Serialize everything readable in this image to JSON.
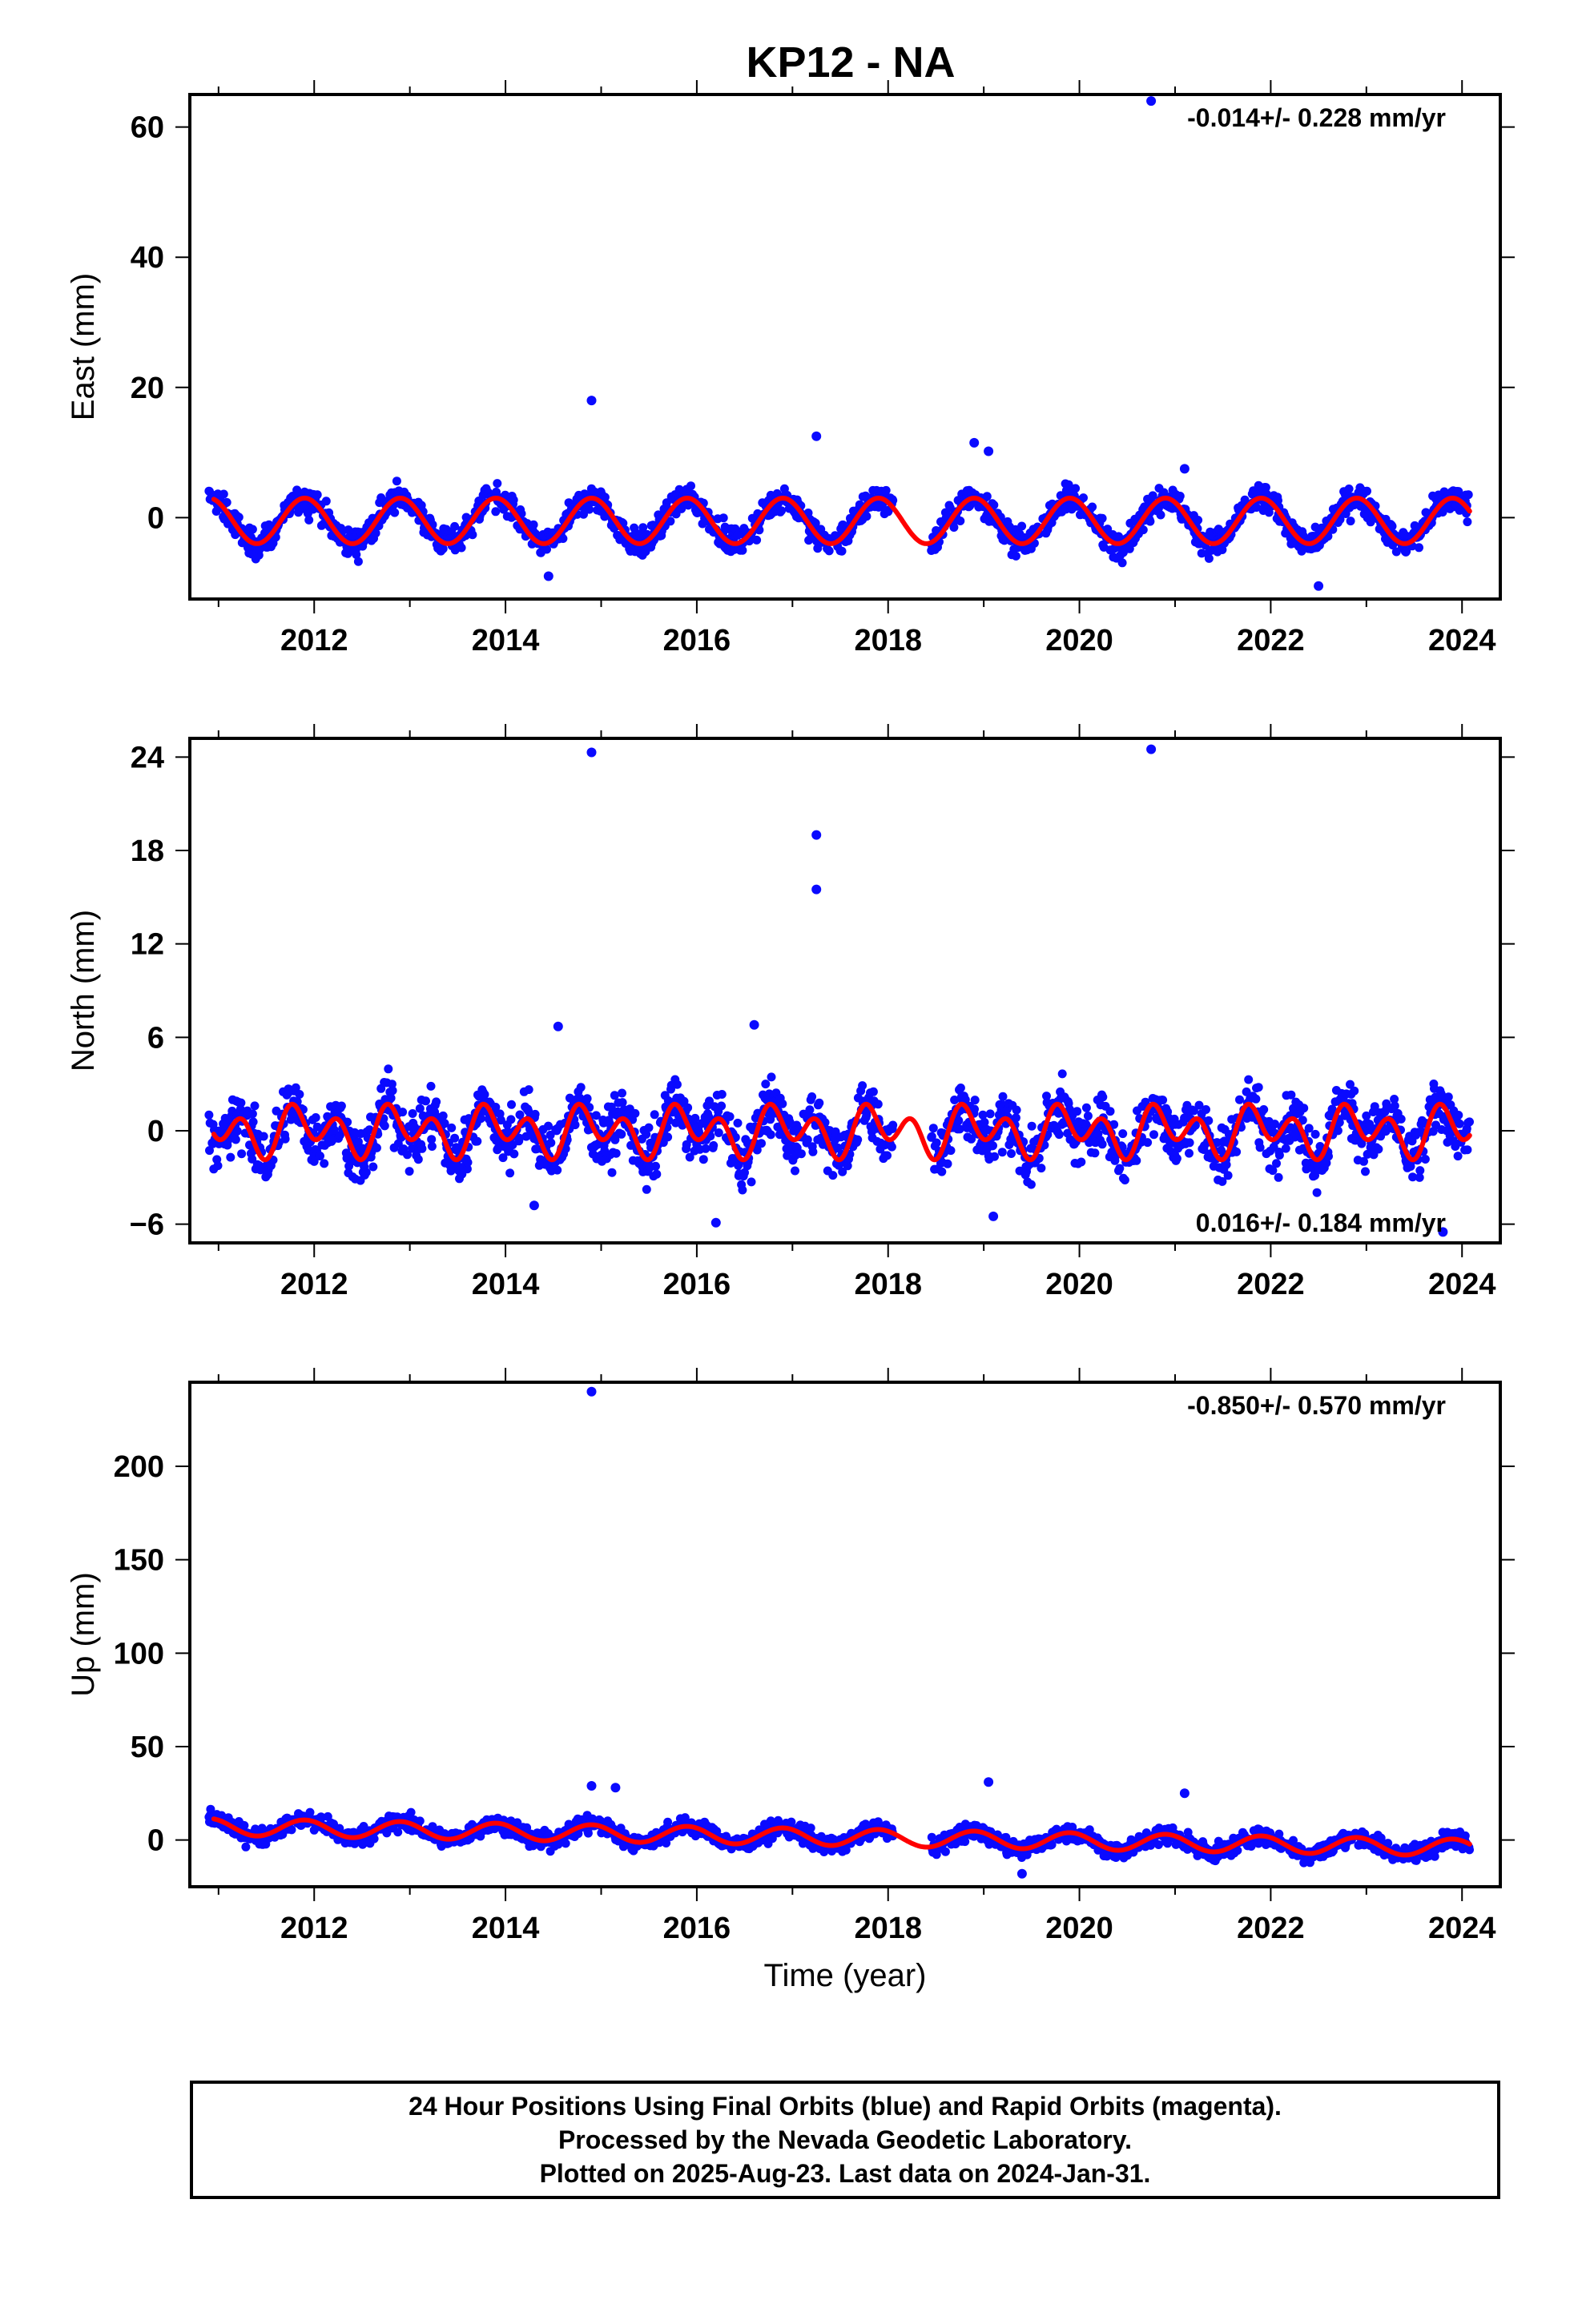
{
  "title": "KP12 - NA",
  "footer": {
    "line1": "24 Hour Positions Using Final Orbits (blue) and Rapid Orbits (magenta).",
    "line2": "Processed by the Nevada Geodetic Laboratory.",
    "line3": "Plotted on 2025-Aug-23. Last data on 2024-Jan-31."
  },
  "colors": {
    "data_points": "#0a0aff",
    "model_curve": "#ff0000",
    "axes": "#000000"
  },
  "chart_data": [
    {
      "type": "scatter",
      "name": "east",
      "ylabel": "East (mm)",
      "xlabel": "",
      "rate_text": "-0.014+/- 0.228 mm/yr",
      "xlim": [
        2010.7,
        2024.4
      ],
      "ylim": [
        -12.5,
        65
      ],
      "xticks": [
        2012,
        2014,
        2016,
        2018,
        2020,
        2022,
        2024
      ],
      "yticks": [
        0,
        20,
        40,
        60
      ],
      "amplitude": 3.5,
      "noise": 1.6,
      "model": {
        "offset": -0.5,
        "annual_amp": 3.5,
        "semiannual_amp": 0.0
      },
      "outliers": [
        [
          2014.9,
          18.0
        ],
        [
          2017.25,
          12.5
        ],
        [
          2018.9,
          11.5
        ],
        [
          2019.05,
          10.2
        ],
        [
          2020.75,
          64.0
        ],
        [
          2014.45,
          -9.0
        ],
        [
          2022.5,
          -10.5
        ],
        [
          2021.1,
          7.5
        ]
      ],
      "gaps": [
        [
          2018.05,
          2018.45
        ]
      ]
    },
    {
      "type": "scatter",
      "name": "north",
      "ylabel": "North (mm)",
      "xlabel": "",
      "rate_text": "0.016+/- 0.184 mm/yr",
      "xlim": [
        2010.7,
        2024.4
      ],
      "ylim": [
        -7.2,
        25.2
      ],
      "xticks": [
        2012,
        2014,
        2016,
        2018,
        2020,
        2022,
        2024
      ],
      "yticks": [
        -6,
        0,
        6,
        12,
        18,
        24
      ],
      "amplitude": 1.2,
      "noise": 1.4,
      "model": {
        "offset": 0.0,
        "annual_amp": 0.8,
        "semiannual_amp": 1.2
      },
      "outliers": [
        [
          2014.9,
          24.3
        ],
        [
          2020.75,
          24.5
        ],
        [
          2017.25,
          19.0
        ],
        [
          2017.25,
          15.5
        ],
        [
          2016.6,
          6.8
        ],
        [
          2014.55,
          6.7
        ],
        [
          2016.2,
          -5.9
        ],
        [
          2014.3,
          -4.8
        ],
        [
          2019.1,
          -5.5
        ],
        [
          2023.8,
          -6.5
        ]
      ],
      "gaps": [
        [
          2018.05,
          2018.45
        ]
      ]
    },
    {
      "type": "scatter",
      "name": "up",
      "ylabel": "Up (mm)",
      "xlabel": "Time (year)",
      "rate_text": "-0.850+/- 0.570 mm/yr",
      "xlim": [
        2010.7,
        2024.4
      ],
      "ylim": [
        -25,
        245
      ],
      "xticks": [
        2012,
        2014,
        2016,
        2018,
        2020,
        2022,
        2024
      ],
      "yticks": [
        0,
        50,
        100,
        150,
        200
      ],
      "amplitude": 4.5,
      "noise": 3.5,
      "model": {
        "offset": 7.0,
        "trend": -0.85,
        "annual_amp": 4.5,
        "semiannual_amp": 0.0
      },
      "outliers": [
        [
          2014.9,
          240.0
        ],
        [
          2014.9,
          29.0
        ],
        [
          2015.15,
          28.0
        ],
        [
          2019.05,
          31.0
        ],
        [
          2021.1,
          25.0
        ],
        [
          2019.4,
          -18.0
        ]
      ],
      "gaps": [
        [
          2018.05,
          2018.45
        ]
      ]
    }
  ]
}
